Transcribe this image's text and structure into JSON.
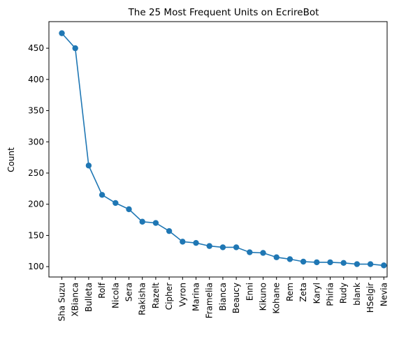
{
  "chart_data": {
    "type": "line",
    "title": "The 25 Most Frequent Units on EcrireBot",
    "xlabel": "",
    "ylabel": "Count",
    "categories": [
      "Sha Suzu",
      "XBianca",
      "Bulleta",
      "Rolf",
      "Nicola",
      "Sera",
      "Rakisha",
      "Razelt",
      "Cipher",
      "Vyron",
      "Marina",
      "Framelia",
      "Bianca",
      "Beaucy",
      "Enni",
      "Kikuno",
      "Kohane",
      "Rem",
      "Zeta",
      "Karyl",
      "Phiria",
      "Rudy",
      "blank",
      "HSelgir",
      "Nevia"
    ],
    "values": [
      474,
      450,
      262,
      215,
      202,
      192,
      172,
      170,
      157,
      140,
      138,
      133,
      131,
      131,
      123,
      122,
      115,
      112,
      108,
      107,
      107,
      106,
      104,
      104,
      102
    ],
    "yticks": [
      100,
      150,
      200,
      250,
      300,
      350,
      400,
      450
    ],
    "ylim": [
      83.4,
      492.6
    ],
    "grid": false,
    "color": "#1f77b4",
    "marker": "circle"
  }
}
